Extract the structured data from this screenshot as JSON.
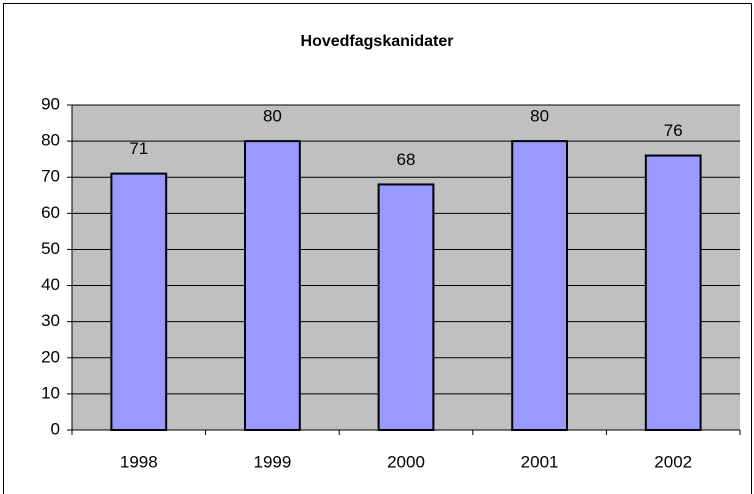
{
  "chart_data": {
    "type": "bar",
    "title": "Hovedfagskanidater",
    "categories": [
      "1998",
      "1999",
      "2000",
      "2001",
      "2002"
    ],
    "values": [
      71,
      80,
      68,
      80,
      76
    ],
    "color": "#9999ff",
    "plot_background": "#c0c0c0",
    "ylim": [
      0,
      90
    ],
    "yticks": [
      0,
      10,
      20,
      30,
      40,
      50,
      60,
      70,
      80,
      90
    ],
    "grid": true
  }
}
